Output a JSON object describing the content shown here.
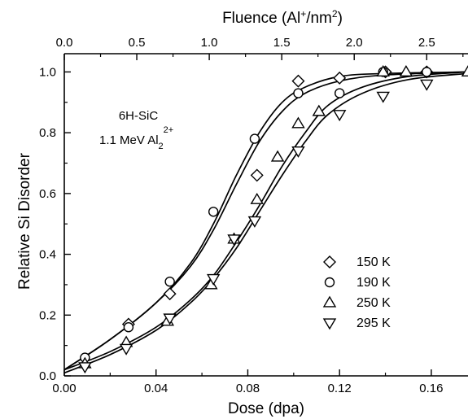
{
  "chart_data": {
    "type": "scatter",
    "title": "",
    "top_axis": {
      "label": "Fluence (Al",
      "label_sup": "+",
      "label_mid": "/nm",
      "label_sup2": "2",
      "label_end": ")",
      "ticks": [
        "0.0",
        "0.5",
        "1.0",
        "1.5",
        "2.0",
        "2.5"
      ]
    },
    "xlabel": "Dose (dpa)",
    "ylabel": "Relative Si Disorder",
    "xlim": [
      0.0,
      0.176
    ],
    "ylim": [
      0.0,
      1.06
    ],
    "x_ticks": [
      "0.00",
      "0.04",
      "0.08",
      "0.12",
      "0.16"
    ],
    "y_ticks": [
      "0.0",
      "0.2",
      "0.4",
      "0.6",
      "0.8",
      "1.0"
    ],
    "annotation": {
      "line1": "6H-SiC",
      "line2": "1.1 MeV Al",
      "line2_sub": "2",
      "line2_sup": "2+"
    },
    "legend_position": "lower-right",
    "series": [
      {
        "name": "150 K",
        "marker": "diamond",
        "points": [
          [
            0.028,
            0.17
          ],
          [
            0.046,
            0.27
          ],
          [
            0.084,
            0.66
          ],
          [
            0.102,
            0.97
          ],
          [
            0.12,
            0.98
          ],
          [
            0.14,
            1.0
          ],
          [
            0.158,
            1.0
          ]
        ],
        "fit": [
          [
            0.0,
            0.02
          ],
          [
            0.02,
            0.12
          ],
          [
            0.04,
            0.24
          ],
          [
            0.055,
            0.37
          ],
          [
            0.065,
            0.5
          ],
          [
            0.075,
            0.66
          ],
          [
            0.085,
            0.8
          ],
          [
            0.095,
            0.9
          ],
          [
            0.105,
            0.95
          ],
          [
            0.12,
            0.985
          ],
          [
            0.14,
            0.995
          ],
          [
            0.176,
            1.0
          ]
        ]
      },
      {
        "name": "190 K",
        "marker": "circle",
        "points": [
          [
            0.009,
            0.06
          ],
          [
            0.028,
            0.16
          ],
          [
            0.046,
            0.31
          ],
          [
            0.065,
            0.54
          ],
          [
            0.083,
            0.78
          ],
          [
            0.102,
            0.93
          ],
          [
            0.12,
            0.93
          ],
          [
            0.139,
            1.0
          ],
          [
            0.158,
            1.0
          ]
        ],
        "fit": [
          [
            0.0,
            0.02
          ],
          [
            0.02,
            0.12
          ],
          [
            0.04,
            0.24
          ],
          [
            0.055,
            0.36
          ],
          [
            0.065,
            0.48
          ],
          [
            0.075,
            0.63
          ],
          [
            0.085,
            0.77
          ],
          [
            0.095,
            0.87
          ],
          [
            0.105,
            0.93
          ],
          [
            0.12,
            0.97
          ],
          [
            0.14,
            0.99
          ],
          [
            0.176,
            1.0
          ]
        ]
      },
      {
        "name": "250 K",
        "marker": "triangle-up",
        "points": [
          [
            0.009,
            0.04
          ],
          [
            0.027,
            0.11
          ],
          [
            0.045,
            0.18
          ],
          [
            0.064,
            0.3
          ],
          [
            0.074,
            0.45
          ],
          [
            0.084,
            0.58
          ],
          [
            0.093,
            0.72
          ],
          [
            0.102,
            0.83
          ],
          [
            0.111,
            0.87
          ],
          [
            0.139,
            1.0
          ],
          [
            0.149,
            1.0
          ],
          [
            0.176,
            1.0
          ]
        ],
        "fit": [
          [
            0.0,
            0.02
          ],
          [
            0.02,
            0.08
          ],
          [
            0.04,
            0.16
          ],
          [
            0.055,
            0.25
          ],
          [
            0.065,
            0.33
          ],
          [
            0.075,
            0.44
          ],
          [
            0.085,
            0.56
          ],
          [
            0.095,
            0.69
          ],
          [
            0.105,
            0.8
          ],
          [
            0.115,
            0.89
          ],
          [
            0.13,
            0.95
          ],
          [
            0.15,
            0.985
          ],
          [
            0.176,
            1.0
          ]
        ]
      },
      {
        "name": "295 K",
        "marker": "triangle-down",
        "points": [
          [
            0.009,
            0.03
          ],
          [
            0.027,
            0.09
          ],
          [
            0.046,
            0.19
          ],
          [
            0.065,
            0.32
          ],
          [
            0.074,
            0.45
          ],
          [
            0.083,
            0.51
          ],
          [
            0.102,
            0.74
          ],
          [
            0.12,
            0.86
          ],
          [
            0.139,
            0.92
          ],
          [
            0.158,
            0.96
          ]
        ],
        "fit": [
          [
            0.0,
            0.01
          ],
          [
            0.02,
            0.07
          ],
          [
            0.04,
            0.15
          ],
          [
            0.055,
            0.24
          ],
          [
            0.065,
            0.32
          ],
          [
            0.075,
            0.42
          ],
          [
            0.085,
            0.54
          ],
          [
            0.095,
            0.66
          ],
          [
            0.105,
            0.77
          ],
          [
            0.115,
            0.86
          ],
          [
            0.13,
            0.93
          ],
          [
            0.15,
            0.975
          ],
          [
            0.176,
            0.995
          ]
        ]
      }
    ]
  }
}
